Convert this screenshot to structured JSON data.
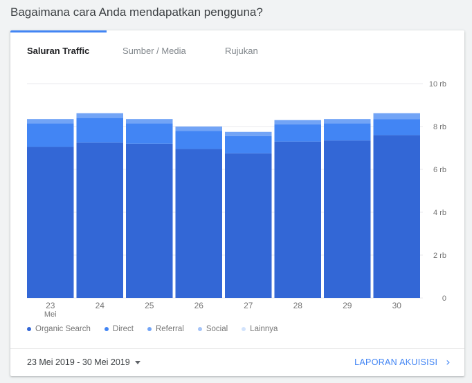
{
  "page": {
    "title": "Bagaimana cara Anda mendapatkan pengguna?"
  },
  "tabs": [
    {
      "label": "Saluran Traffic",
      "active": true
    },
    {
      "label": "Sumber / Media",
      "active": false
    },
    {
      "label": "Rujukan",
      "active": false
    }
  ],
  "colors": {
    "accent": "#4285f4"
  },
  "chart_data": {
    "type": "bar",
    "stacked": true,
    "categories": [
      "23",
      "24",
      "25",
      "26",
      "27",
      "28",
      "29",
      "30"
    ],
    "category_sublabels": [
      "Mei",
      "",
      "",
      "",
      "",
      "",
      "",
      ""
    ],
    "ylim": [
      0,
      10000
    ],
    "y_ticks": [
      0,
      2000,
      4000,
      6000,
      8000,
      10000
    ],
    "y_tick_labels": [
      "0",
      "2 rb",
      "4 rb",
      "6 rb",
      "8 rb",
      "10 rb"
    ],
    "y_axis_position": "right",
    "grid": true,
    "legend_position": "bottom-left",
    "series": [
      {
        "name": "Organic Search",
        "color": "#3367d6",
        "values": [
          7050,
          7250,
          7200,
          6950,
          6750,
          7300,
          7350,
          7600
        ]
      },
      {
        "name": "Direct",
        "color": "#4285f4",
        "values": [
          1100,
          1150,
          950,
          850,
          800,
          800,
          800,
          750
        ]
      },
      {
        "name": "Referral",
        "color": "#72a4f6",
        "values": [
          200,
          220,
          200,
          200,
          200,
          200,
          200,
          270
        ]
      },
      {
        "name": "Social",
        "color": "#a5c4f8",
        "values": [
          0,
          0,
          0,
          0,
          0,
          0,
          0,
          0
        ]
      },
      {
        "name": "Lainnya",
        "color": "#d2e3fc",
        "values": [
          0,
          0,
          0,
          0,
          0,
          0,
          0,
          0
        ]
      }
    ]
  },
  "footer": {
    "date_range": "23 Mei 2019 - 30 Mei 2019",
    "report_link": "LAPORAN AKUISISI"
  }
}
